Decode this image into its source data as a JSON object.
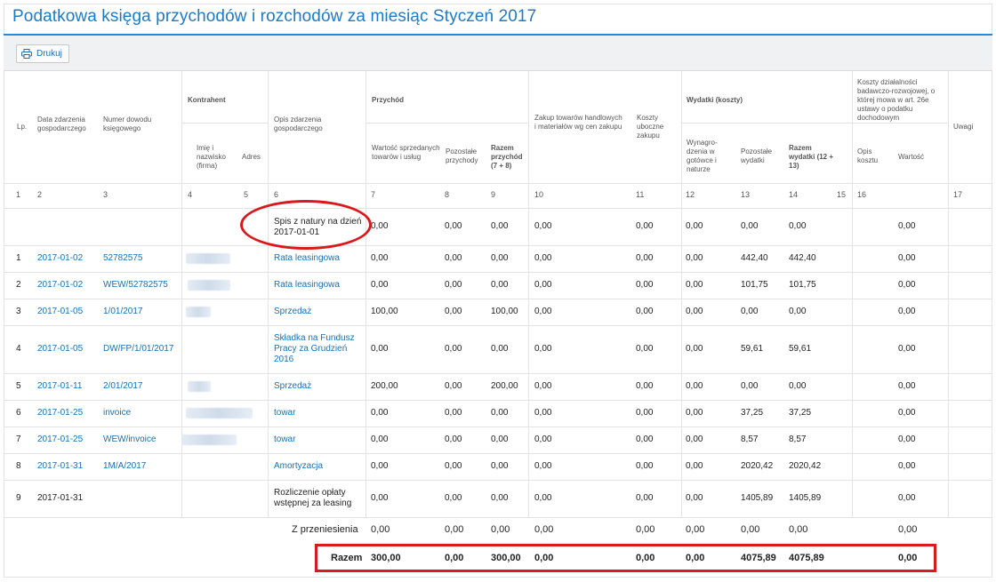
{
  "title": "Podatkowa księga przychodów i rozchodów za miesiąc Styczeń 2017",
  "toolbar": {
    "print_label": "Drukuj",
    "print_icon": "printer-icon"
  },
  "headers": {
    "lp": "Lp.",
    "data": "Data zdarzenia gospodarczego",
    "numer": "Numer dowodu księgowego",
    "kontrahent": "Kontrahent",
    "imie": "Imię i nazwisko (firma)",
    "adres": "Adres",
    "opis": "Opis zdarzenia gospodarczego",
    "przychod": "Przychód",
    "wartosc": "Wartość sprzedanych towarów i usług",
    "pozostale_przychody": "Pozostałe przychody",
    "razem_przychod": "Razem przychód (7 + 8)",
    "zakup": "Zakup towarów handlowych i materiałów wg cen zakupu",
    "koszty_uboczne": "Koszty uboczne zakupu",
    "wydatki": "Wydatki (koszty)",
    "wynagrodzenia": "Wynagro-dzenia w gotówce i naturze",
    "pozostale_wydatki": "Pozostałe wydatki",
    "razem_wydatki": "Razem wydatki (12 + 13)",
    "koszty_br": "Koszty działalności badawczo-rozwojowej, o której mowa w art. 26e ustawy o podatku dochodowym",
    "opis_kosztu": "Opis kosztu",
    "wartosc_br": "Wartość",
    "uwagi": "Uwagi"
  },
  "column_numbers": [
    "1",
    "2",
    "3",
    "4",
    "5",
    "6",
    "7",
    "8",
    "9",
    "10",
    "11",
    "12",
    "13",
    "14",
    "15",
    "16",
    "17"
  ],
  "opening_row": {
    "opis": "Spis z natury na dzień 2017-01-01",
    "c7": "0,00",
    "c8": "0,00",
    "c9": "0,00",
    "c10": "0,00",
    "c11": "0,00",
    "c12": "0,00",
    "c13": "0,00",
    "c14": "0,00",
    "c16": "0,00"
  },
  "rows": [
    {
      "lp": "1",
      "data": "2017-01-02",
      "numer": "52782575",
      "opis": "Rata leasingowa",
      "c7": "0,00",
      "c8": "0,00",
      "c9": "0,00",
      "c10": "0,00",
      "c11": "0,00",
      "c12": "0,00",
      "c13": "442,40",
      "c14": "442,40",
      "c16": "0,00"
    },
    {
      "lp": "2",
      "data": "2017-01-02",
      "numer": "WEW/52782575",
      "opis": "Rata leasingowa",
      "c7": "0,00",
      "c8": "0,00",
      "c9": "0,00",
      "c10": "0,00",
      "c11": "0,00",
      "c12": "0,00",
      "c13": "101,75",
      "c14": "101,75",
      "c16": "0,00"
    },
    {
      "lp": "3",
      "data": "2017-01-05",
      "numer": "1/01/2017",
      "opis": "Sprzedaż",
      "c7": "100,00",
      "c8": "0,00",
      "c9": "100,00",
      "c10": "0,00",
      "c11": "0,00",
      "c12": "0,00",
      "c13": "0,00",
      "c14": "0,00",
      "c16": "0,00"
    },
    {
      "lp": "4",
      "data": "2017-01-05",
      "numer": "DW/FP/1/01/2017",
      "opis": "Składka na Fundusz Pracy za Grudzień 2016",
      "c7": "0,00",
      "c8": "0,00",
      "c9": "0,00",
      "c10": "0,00",
      "c11": "0,00",
      "c12": "0,00",
      "c13": "59,61",
      "c14": "59,61",
      "c16": "0,00"
    },
    {
      "lp": "5",
      "data": "2017-01-11",
      "numer": "2/01/2017",
      "opis": "Sprzedaż",
      "c7": "200,00",
      "c8": "0,00",
      "c9": "200,00",
      "c10": "0,00",
      "c11": "0,00",
      "c12": "0,00",
      "c13": "0,00",
      "c14": "0,00",
      "c16": "0,00"
    },
    {
      "lp": "6",
      "data": "2017-01-25",
      "numer": "invoice",
      "opis": "towar",
      "c7": "0,00",
      "c8": "0,00",
      "c9": "0,00",
      "c10": "0,00",
      "c11": "0,00",
      "c12": "0,00",
      "c13": "37,25",
      "c14": "37,25",
      "c16": "0,00"
    },
    {
      "lp": "7",
      "data": "2017-01-25",
      "numer": "WEW/invoice",
      "opis": "towar",
      "c7": "0,00",
      "c8": "0,00",
      "c9": "0,00",
      "c10": "0,00",
      "c11": "0,00",
      "c12": "0,00",
      "c13": "8,57",
      "c14": "8,57",
      "c16": "0,00"
    },
    {
      "lp": "8",
      "data": "2017-01-31",
      "numer": "1M/A/2017",
      "opis": "Amortyzacja",
      "c7": "0,00",
      "c8": "0,00",
      "c9": "0,00",
      "c10": "0,00",
      "c11": "0,00",
      "c12": "0,00",
      "c13": "2020,42",
      "c14": "2020,42",
      "c16": "0,00"
    },
    {
      "lp": "9",
      "data": "2017-01-31",
      "numer": "",
      "opis": "Rozliczenie opłaty wstępnej za leasing",
      "c7": "0,00",
      "c8": "0,00",
      "c9": "0,00",
      "c10": "0,00",
      "c11": "0,00",
      "c12": "0,00",
      "c13": "1405,89",
      "c14": "1405,89",
      "c16": "0,00"
    }
  ],
  "z_przeniesienia": {
    "label": "Z przeniesienia",
    "c7": "0,00",
    "c8": "0,00",
    "c9": "0,00",
    "c10": "0,00",
    "c11": "0,00",
    "c12": "0,00",
    "c13": "0,00",
    "c14": "0,00",
    "c16": "0,00"
  },
  "razem": {
    "label": "Razem",
    "c7": "300,00",
    "c8": "0,00",
    "c9": "300,00",
    "c10": "0,00",
    "c11": "0,00",
    "c12": "0,00",
    "c13": "4075,89",
    "c14": "4075,89",
    "c16": "0,00"
  },
  "colors": {
    "accent": "#1b7bc8",
    "link": "#1b6fb3",
    "highlight": "#d9191c"
  }
}
